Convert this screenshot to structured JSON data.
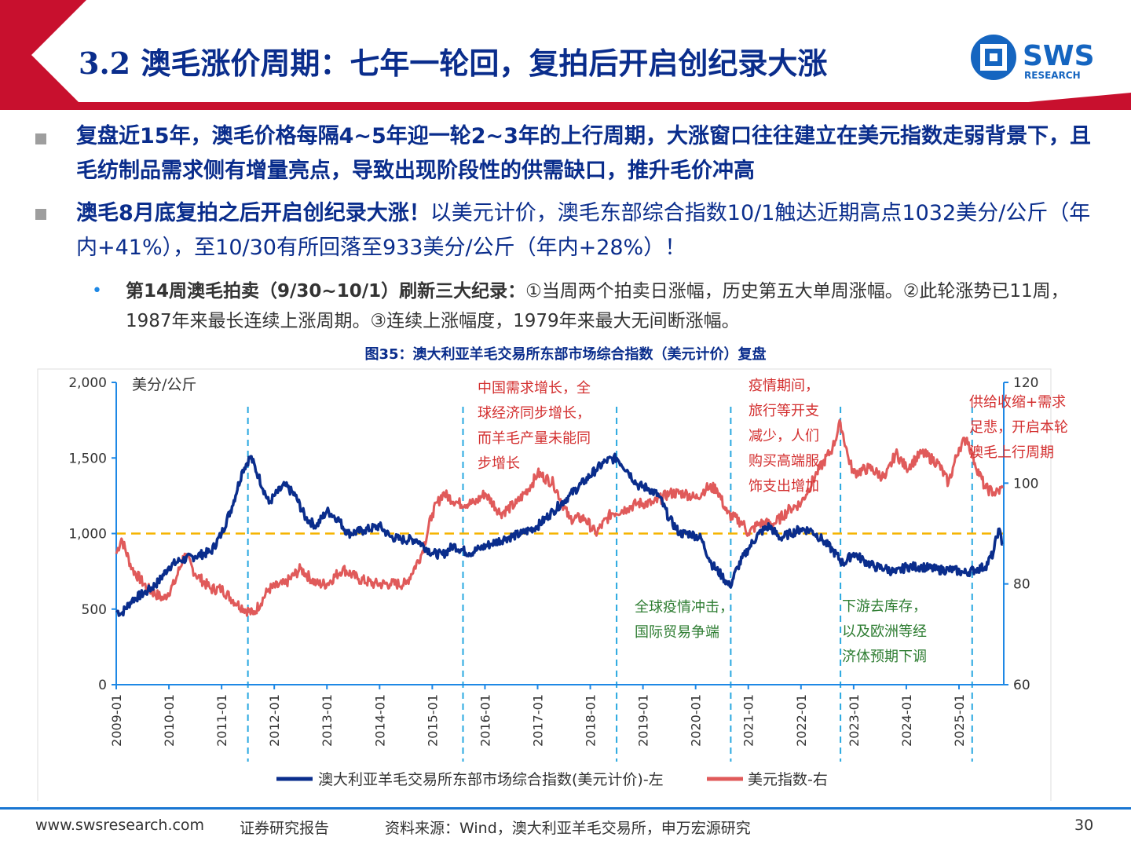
{
  "header": {
    "title": "3.2 澳毛涨价周期：七年一轮回，复拍后开启创纪录大涨",
    "logo_text": "SWS",
    "logo_sub": "RESEARCH"
  },
  "bullets": [
    {
      "bold": "复盘近15年，澳毛价格每隔4~5年迎一轮2~3年的上行周期，大涨窗口往往建立在美元指数走弱背景下，且毛纺制品需求侧有增量亮点，导致出现阶段性的供需缺口，推升毛价冲高",
      "text": ""
    },
    {
      "bold": "澳毛8月底复拍之后开启创纪录大涨！",
      "text": "以美元计价，澳毛东部综合指数10/1触达近期高点1032美分/公斤（年内+41%），至10/30有所回落至933美分/公斤（年内+28%）！"
    }
  ],
  "sub_bullet": {
    "bold": "第14周澳毛拍卖（9/30~10/1）刷新三大纪录：",
    "text": "①当周两个拍卖日涨幅，历史第五大单周涨幅。②此轮涨势已11周，1987年来最长连续上涨周期。③连续上涨幅度，1979年来最大无间断涨幅。"
  },
  "chart_title": "图35：澳大利亚羊毛交易所东部市场综合指数（美元计价）复盘",
  "chart_data": {
    "type": "line",
    "y_left_unit": "美分/公斤",
    "y_left_ticks": [
      "0",
      "500",
      "1,000",
      "1,500",
      "2,000"
    ],
    "y_left_range": [
      0,
      2000
    ],
    "y_right_ticks": [
      "60",
      "80",
      "100",
      "120"
    ],
    "y_right_range": [
      60,
      120
    ],
    "x_ticks": [
      "2009-01",
      "2010-01",
      "2011-01",
      "2012-01",
      "2013-01",
      "2014-01",
      "2015-01",
      "2016-01",
      "2017-01",
      "2018-01",
      "2019-01",
      "2020-01",
      "2021-01",
      "2022-01",
      "2023-01",
      "2024-01",
      "2025-01"
    ],
    "reference_line_left": 1000,
    "cycle_markers": [
      "2011-07",
      "2015-08",
      "2018-07",
      "2020-09",
      "2022-10",
      "2025-04"
    ],
    "series": [
      {
        "name": "澳大利亚羊毛交易所东部市场综合指数(美元计价)-左",
        "axis": "left",
        "color": "#0a2d8c",
        "points": [
          [
            2009.0,
            490
          ],
          [
            2009.1,
            470
          ],
          [
            2009.3,
            560
          ],
          [
            2009.6,
            620
          ],
          [
            2009.8,
            680
          ],
          [
            2010.0,
            780
          ],
          [
            2010.2,
            820
          ],
          [
            2010.5,
            850
          ],
          [
            2010.8,
            880
          ],
          [
            2011.0,
            1000
          ],
          [
            2011.2,
            1180
          ],
          [
            2011.4,
            1420
          ],
          [
            2011.55,
            1510
          ],
          [
            2011.7,
            1380
          ],
          [
            2011.9,
            1200
          ],
          [
            2012.0,
            1250
          ],
          [
            2012.2,
            1320
          ],
          [
            2012.4,
            1250
          ],
          [
            2012.6,
            1100
          ],
          [
            2012.8,
            1050
          ],
          [
            2013.0,
            1150
          ],
          [
            2013.2,
            1100
          ],
          [
            2013.4,
            1000
          ],
          [
            2013.7,
            1020
          ],
          [
            2014.0,
            1050
          ],
          [
            2014.2,
            980
          ],
          [
            2014.4,
            960
          ],
          [
            2014.7,
            960
          ],
          [
            2015.0,
            870
          ],
          [
            2015.2,
            860
          ],
          [
            2015.4,
            920
          ],
          [
            2015.7,
            870
          ],
          [
            2015.9,
            900
          ],
          [
            2016.1,
            930
          ],
          [
            2016.4,
            970
          ],
          [
            2016.7,
            1000
          ],
          [
            2017.0,
            1050
          ],
          [
            2017.3,
            1150
          ],
          [
            2017.6,
            1250
          ],
          [
            2017.9,
            1350
          ],
          [
            2018.1,
            1420
          ],
          [
            2018.3,
            1480
          ],
          [
            2018.5,
            1500
          ],
          [
            2018.7,
            1420
          ],
          [
            2018.9,
            1320
          ],
          [
            2019.1,
            1300
          ],
          [
            2019.3,
            1250
          ],
          [
            2019.5,
            1100
          ],
          [
            2019.7,
            1000
          ],
          [
            2019.9,
            1000
          ],
          [
            2020.1,
            970
          ],
          [
            2020.3,
            800
          ],
          [
            2020.5,
            720
          ],
          [
            2020.65,
            650
          ],
          [
            2020.8,
            780
          ],
          [
            2021.0,
            900
          ],
          [
            2021.2,
            1000
          ],
          [
            2021.4,
            1050
          ],
          [
            2021.6,
            970
          ],
          [
            2021.8,
            1000
          ],
          [
            2022.0,
            1030
          ],
          [
            2022.2,
            1020
          ],
          [
            2022.4,
            960
          ],
          [
            2022.6,
            890
          ],
          [
            2022.8,
            800
          ],
          [
            2023.0,
            870
          ],
          [
            2023.2,
            820
          ],
          [
            2023.4,
            780
          ],
          [
            2023.6,
            770
          ],
          [
            2023.8,
            740
          ],
          [
            2024.0,
            780
          ],
          [
            2024.3,
            780
          ],
          [
            2024.6,
            760
          ],
          [
            2024.9,
            760
          ],
          [
            2025.1,
            740
          ],
          [
            2025.3,
            760
          ],
          [
            2025.5,
            780
          ],
          [
            2025.65,
            870
          ],
          [
            2025.75,
            1030
          ],
          [
            2025.83,
            930
          ]
        ]
      },
      {
        "name": "美元指数-右",
        "axis": "right",
        "color": "#e05a5a",
        "points": [
          [
            2009.0,
            86
          ],
          [
            2009.1,
            89
          ],
          [
            2009.3,
            83
          ],
          [
            2009.6,
            79
          ],
          [
            2009.9,
            77
          ],
          [
            2010.1,
            80
          ],
          [
            2010.3,
            86
          ],
          [
            2010.5,
            82
          ],
          [
            2010.8,
            79
          ],
          [
            2011.0,
            79
          ],
          [
            2011.3,
            76
          ],
          [
            2011.6,
            74
          ],
          [
            2011.9,
            79
          ],
          [
            2012.2,
            80
          ],
          [
            2012.5,
            83
          ],
          [
            2012.8,
            80
          ],
          [
            2013.0,
            80
          ],
          [
            2013.3,
            83
          ],
          [
            2013.6,
            81
          ],
          [
            2013.9,
            80
          ],
          [
            2014.2,
            80
          ],
          [
            2014.5,
            80
          ],
          [
            2014.8,
            86
          ],
          [
            2015.0,
            94
          ],
          [
            2015.2,
            98
          ],
          [
            2015.5,
            96
          ],
          [
            2015.8,
            96
          ],
          [
            2016.0,
            98
          ],
          [
            2016.3,
            94
          ],
          [
            2016.6,
            96
          ],
          [
            2016.9,
            100
          ],
          [
            2017.0,
            102
          ],
          [
            2017.3,
            100
          ],
          [
            2017.6,
            93
          ],
          [
            2017.9,
            93
          ],
          [
            2018.1,
            90
          ],
          [
            2018.4,
            94
          ],
          [
            2018.7,
            95
          ],
          [
            2018.9,
            96
          ],
          [
            2019.2,
            96
          ],
          [
            2019.5,
            98
          ],
          [
            2019.8,
            98
          ],
          [
            2020.0,
            97
          ],
          [
            2020.2,
            99
          ],
          [
            2020.4,
            99
          ],
          [
            2020.6,
            94
          ],
          [
            2020.9,
            92
          ],
          [
            2021.0,
            90
          ],
          [
            2021.2,
            92
          ],
          [
            2021.5,
            92
          ],
          [
            2021.8,
            95
          ],
          [
            2022.0,
            96
          ],
          [
            2022.3,
            102
          ],
          [
            2022.6,
            107
          ],
          [
            2022.75,
            112
          ],
          [
            2022.9,
            105
          ],
          [
            2023.0,
            102
          ],
          [
            2023.3,
            103
          ],
          [
            2023.6,
            101
          ],
          [
            2023.8,
            106
          ],
          [
            2024.0,
            103
          ],
          [
            2024.3,
            106
          ],
          [
            2024.6,
            104
          ],
          [
            2024.8,
            100
          ],
          [
            2025.0,
            107
          ],
          [
            2025.15,
            109
          ],
          [
            2025.3,
            104
          ],
          [
            2025.5,
            99
          ],
          [
            2025.7,
            98
          ],
          [
            2025.83,
            99
          ]
        ]
      }
    ],
    "annotations": {
      "a1": [
        "中国需求增长，全",
        "球经济同步增长，",
        "而羊毛产量未能同",
        "步增长"
      ],
      "a2": [
        "疫情期间，",
        "旅行等开支",
        "减少，人们",
        "购买高端服",
        "饰支出增加"
      ],
      "a3": [
        "供给收缩+需求",
        "足悲，开启本轮",
        "澳毛上行周期"
      ],
      "a4": [
        "全球疫情冲击，",
        "国际贸易争端"
      ],
      "a5": [
        "下游去库存，",
        "以及欧洲等经",
        "济体预期下调"
      ]
    },
    "legend": "bottom-center"
  },
  "footer": {
    "website": "www.swsresearch.com",
    "report": "证券研究报告",
    "source": "资料来源：Wind，澳大利亚羊毛交易所，申万宏源研究",
    "page": "30"
  }
}
